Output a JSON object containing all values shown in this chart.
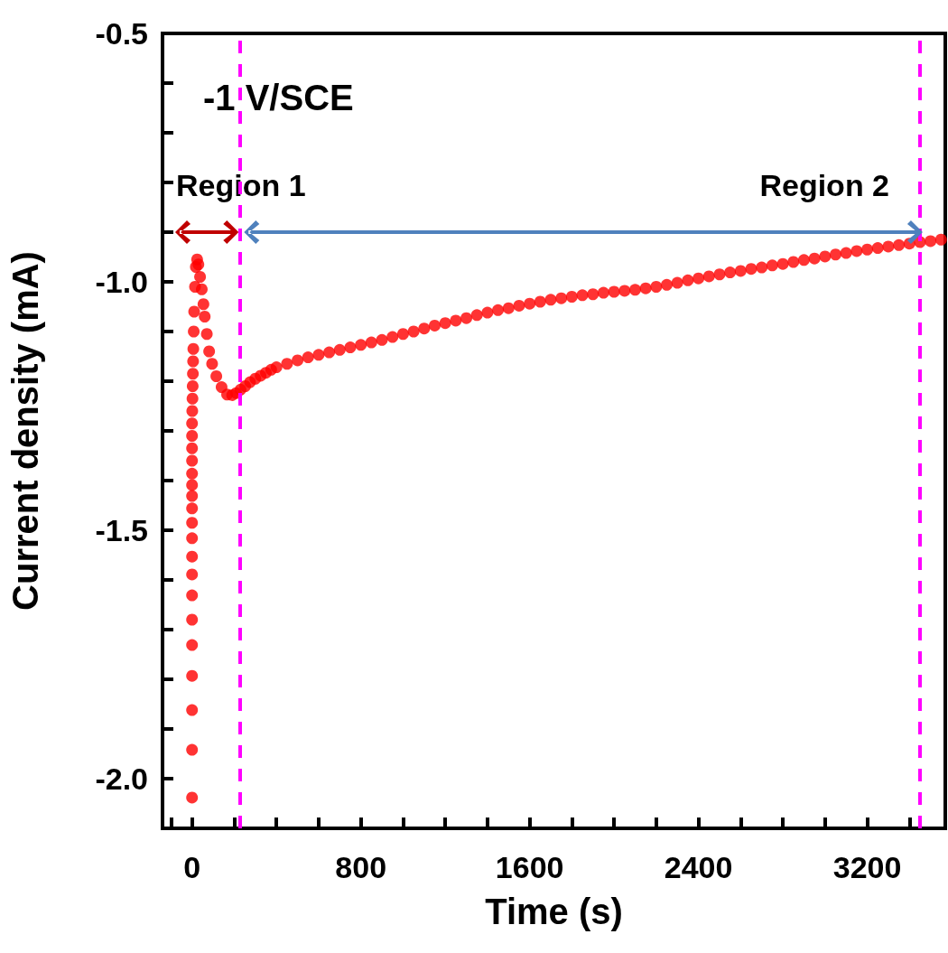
{
  "chart_data": {
    "type": "scatter",
    "xlabel": "Time (s)",
    "ylabel": "Current density (mA)",
    "annotations": [
      "-1 V/SCE",
      "Region 1",
      "Region 2"
    ],
    "x": [
      0,
      0,
      0,
      0,
      0,
      0,
      0,
      0,
      0,
      0,
      0,
      0,
      0,
      0,
      0,
      0,
      0,
      0,
      0,
      1,
      2,
      3,
      4,
      5,
      6,
      8,
      10,
      14,
      18,
      24,
      30,
      38,
      46,
      54,
      60,
      70,
      81,
      95,
      115,
      140,
      166,
      190,
      209,
      230,
      252,
      275,
      300,
      325,
      350,
      375,
      400,
      450,
      500,
      550,
      600,
      650,
      700,
      750,
      800,
      850,
      900,
      950,
      1000,
      1050,
      1100,
      1150,
      1200,
      1250,
      1300,
      1350,
      1400,
      1450,
      1500,
      1550,
      1600,
      1650,
      1700,
      1750,
      1800,
      1850,
      1900,
      1950,
      2000,
      2050,
      2100,
      2150,
      2200,
      2250,
      2300,
      2350,
      2400,
      2450,
      2500,
      2550,
      2600,
      2650,
      2700,
      2750,
      2800,
      2850,
      2900,
      2950,
      3000,
      3050,
      3100,
      3150,
      3200,
      3250,
      3300,
      3350,
      3400,
      3450,
      3500,
      3550
    ],
    "series": [
      {
        "color": "#ff0000",
        "values": [
          -2.038,
          -1.942,
          -1.862,
          -1.793,
          -1.731,
          -1.68,
          -1.631,
          -1.589,
          -1.553,
          -1.516,
          -1.485,
          -1.456,
          -1.431,
          -1.409,
          -1.386,
          -1.36,
          -1.335,
          -1.31,
          -1.285,
          -1.26,
          -1.235,
          -1.21,
          -1.185,
          -1.16,
          -1.135,
          -1.1,
          -1.06,
          -1.01,
          -0.97,
          -0.955,
          -0.965,
          -0.99,
          -1.015,
          -1.045,
          -1.07,
          -1.105,
          -1.14,
          -1.165,
          -1.19,
          -1.212,
          -1.227,
          -1.228,
          -1.224,
          -1.217,
          -1.21,
          -1.202,
          -1.195,
          -1.189,
          -1.183,
          -1.177,
          -1.172,
          -1.165,
          -1.158,
          -1.152,
          -1.147,
          -1.142,
          -1.137,
          -1.132,
          -1.127,
          -1.122,
          -1.117,
          -1.111,
          -1.105,
          -1.1,
          -1.094,
          -1.088,
          -1.083,
          -1.078,
          -1.073,
          -1.067,
          -1.062,
          -1.057,
          -1.053,
          -1.048,
          -1.044,
          -1.04,
          -1.036,
          -1.033,
          -1.03,
          -1.027,
          -1.025,
          -1.022,
          -1.02,
          -1.018,
          -1.016,
          -1.013,
          -1.01,
          -1.006,
          -1.002,
          -0.997,
          -0.993,
          -0.989,
          -0.985,
          -0.981,
          -0.978,
          -0.974,
          -0.971,
          -0.967,
          -0.964,
          -0.96,
          -0.956,
          -0.953,
          -0.949,
          -0.945,
          -0.942,
          -0.938,
          -0.935,
          -0.932,
          -0.929,
          -0.926,
          -0.923,
          -0.92,
          -0.918,
          -0.915
        ]
      }
    ],
    "xlim": [
      -140,
      3570
    ],
    "ylim": [
      -2.1,
      -0.5
    ],
    "xticks": [
      {
        "value": -100,
        "label": null
      },
      0,
      {
        "value": 200,
        "label": null
      },
      {
        "value": 400,
        "label": null
      },
      {
        "value": 600,
        "label": null
      },
      800,
      {
        "value": 1000,
        "label": null
      },
      {
        "value": 1200,
        "label": null
      },
      {
        "value": 1400,
        "label": null
      },
      1600,
      {
        "value": 1800,
        "label": null
      },
      {
        "value": 2000,
        "label": null
      },
      {
        "value": 2200,
        "label": null
      },
      2400,
      {
        "value": 2600,
        "label": null
      },
      {
        "value": 2800,
        "label": null
      },
      {
        "value": 3000,
        "label": null
      },
      3200,
      {
        "value": 3400,
        "label": null
      }
    ],
    "yticks": [
      {
        "value": -2.1,
        "label": null
      },
      {
        "value": -2,
        "label": "-2.0"
      },
      {
        "value": -1.9,
        "label": null
      },
      {
        "value": -1.8,
        "label": null
      },
      {
        "value": -1.7,
        "label": null
      },
      {
        "value": -1.6,
        "label": null
      },
      -1.5,
      {
        "value": -1.4,
        "label": null
      },
      {
        "value": -1.3,
        "label": null
      },
      {
        "value": -1.2,
        "label": null
      },
      {
        "value": -1.1,
        "label": null
      },
      {
        "value": -1,
        "label": "-1.0"
      },
      {
        "value": -0.9,
        "label": null
      },
      {
        "value": -0.8,
        "label": null
      },
      {
        "value": -0.7,
        "label": null
      },
      {
        "value": -0.6,
        "label": null
      },
      -0.5
    ],
    "marker": "circle",
    "grid": false,
    "ref_lines": [
      {
        "axis": "x",
        "value": 225,
        "color": "#ff00ff",
        "line_style": "dashed"
      },
      {
        "axis": "x",
        "value": 3450,
        "color": "#ff00ff",
        "line_style": "dashed"
      }
    ]
  }
}
